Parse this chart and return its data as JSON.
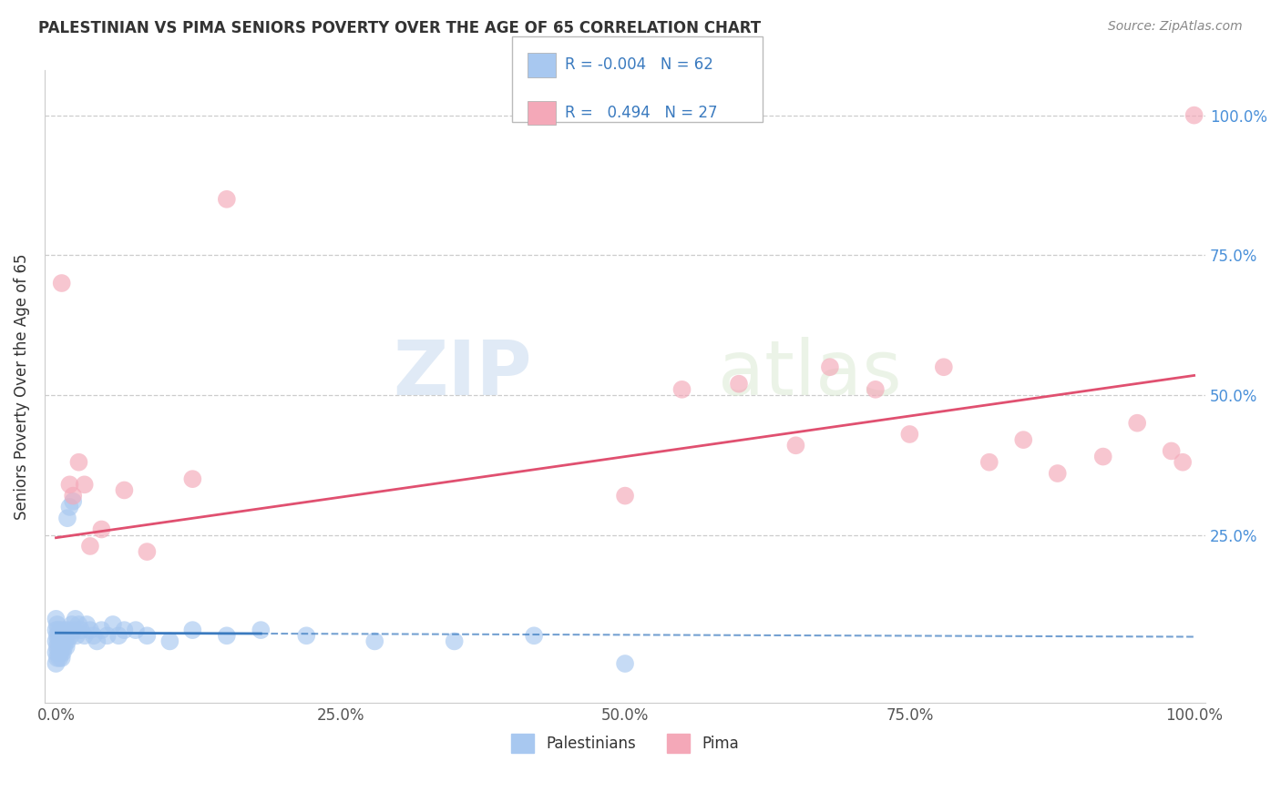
{
  "title": "PALESTINIAN VS PIMA SENIORS POVERTY OVER THE AGE OF 65 CORRELATION CHART",
  "source": "Source: ZipAtlas.com",
  "ylabel": "Seniors Poverty Over the Age of 65",
  "xlim": [
    -0.01,
    1.01
  ],
  "ylim": [
    -0.05,
    1.08
  ],
  "xticks": [
    0.0,
    0.25,
    0.5,
    0.75,
    1.0
  ],
  "xtick_labels": [
    "0.0%",
    "25.0%",
    "50.0%",
    "75.0%",
    "100.0%"
  ],
  "ytick_labels": [
    "25.0%",
    "50.0%",
    "75.0%",
    "100.0%"
  ],
  "ytick_vals": [
    0.25,
    0.5,
    0.75,
    1.0
  ],
  "grid_color": "#cccccc",
  "background_color": "#ffffff",
  "blue_color": "#a8c8f0",
  "pink_color": "#f4a8b8",
  "blue_line_color": "#3a7abf",
  "pink_line_color": "#e05070",
  "legend_R_blue": "-0.004",
  "legend_N_blue": "62",
  "legend_R_pink": "0.494",
  "legend_N_pink": "27",
  "legend_label_blue": "Palestinians",
  "legend_label_pink": "Pima",
  "blue_line_y0": 0.075,
  "blue_line_y1": 0.068,
  "pink_line_y0": 0.245,
  "pink_line_y1": 0.535,
  "blue_x": [
    0.0,
    0.0,
    0.0,
    0.0,
    0.0,
    0.001,
    0.001,
    0.001,
    0.001,
    0.002,
    0.002,
    0.002,
    0.003,
    0.003,
    0.003,
    0.004,
    0.004,
    0.004,
    0.005,
    0.005,
    0.005,
    0.006,
    0.006,
    0.007,
    0.007,
    0.008,
    0.008,
    0.009,
    0.009,
    0.01,
    0.01,
    0.011,
    0.012,
    0.013,
    0.014,
    0.015,
    0.016,
    0.017,
    0.018,
    0.02,
    0.022,
    0.025,
    0.027,
    0.03,
    0.033,
    0.036,
    0.04,
    0.045,
    0.05,
    0.055,
    0.06,
    0.07,
    0.08,
    0.1,
    0.12,
    0.15,
    0.18,
    0.22,
    0.28,
    0.35,
    0.42,
    0.5
  ],
  "blue_y": [
    0.02,
    0.04,
    0.06,
    0.08,
    0.1,
    0.03,
    0.05,
    0.07,
    0.09,
    0.04,
    0.06,
    0.08,
    0.03,
    0.05,
    0.07,
    0.04,
    0.06,
    0.08,
    0.03,
    0.05,
    0.07,
    0.04,
    0.06,
    0.05,
    0.07,
    0.06,
    0.08,
    0.05,
    0.07,
    0.06,
    0.28,
    0.08,
    0.3,
    0.07,
    0.09,
    0.31,
    0.08,
    0.1,
    0.07,
    0.09,
    0.08,
    0.07,
    0.09,
    0.08,
    0.07,
    0.06,
    0.08,
    0.07,
    0.09,
    0.07,
    0.08,
    0.08,
    0.07,
    0.06,
    0.08,
    0.07,
    0.08,
    0.07,
    0.06,
    0.06,
    0.07,
    0.02
  ],
  "pink_x": [
    0.005,
    0.012,
    0.015,
    0.02,
    0.025,
    0.03,
    0.04,
    0.06,
    0.08,
    0.12,
    0.15,
    0.5,
    0.55,
    0.6,
    0.65,
    0.68,
    0.72,
    0.75,
    0.78,
    0.82,
    0.85,
    0.88,
    0.92,
    0.95,
    0.98,
    0.99,
    1.0
  ],
  "pink_y": [
    0.7,
    0.34,
    0.32,
    0.38,
    0.34,
    0.23,
    0.26,
    0.33,
    0.22,
    0.35,
    0.85,
    0.32,
    0.51,
    0.52,
    0.41,
    0.55,
    0.51,
    0.43,
    0.55,
    0.38,
    0.42,
    0.36,
    0.39,
    0.45,
    0.4,
    0.38,
    1.0
  ]
}
